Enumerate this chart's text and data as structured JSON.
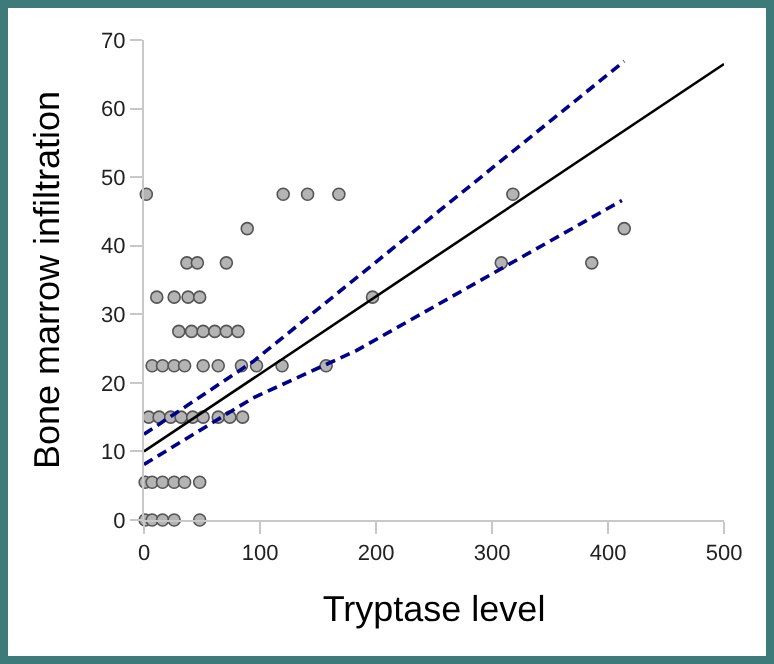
{
  "chart_data": {
    "type": "scatter",
    "xlabel": "Tryptase level",
    "ylabel": "Bone marrow infiltration",
    "xlim": [
      0,
      500
    ],
    "xticks": [
      0,
      100,
      200,
      300,
      400,
      500
    ],
    "ylim": [
      0,
      70
    ],
    "yticks": [
      0,
      10,
      20,
      30,
      40,
      50,
      60,
      70
    ],
    "series": [
      {
        "marker": "circle",
        "color": "#b4b4b4",
        "x": [
          2,
          120,
          141,
          168,
          318,
          89,
          414,
          37,
          46,
          71,
          308,
          386,
          11,
          26,
          38,
          48,
          197,
          30,
          41,
          51,
          61,
          71,
          81,
          7,
          16,
          26,
          35,
          51,
          64,
          84,
          97,
          119,
          157,
          4,
          13,
          23,
          32,
          42,
          51,
          64,
          74,
          85,
          1,
          7,
          16,
          26,
          35,
          48,
          1,
          7,
          16,
          26,
          48
        ],
        "values": [
          47.5,
          47.5,
          47.5,
          47.5,
          47.5,
          42.5,
          42.5,
          37.5,
          37.5,
          37.5,
          37.5,
          37.5,
          32.5,
          32.5,
          32.5,
          32.5,
          32.5,
          27.5,
          27.5,
          27.5,
          27.5,
          27.5,
          27.5,
          22.5,
          22.5,
          22.5,
          22.5,
          22.5,
          22.5,
          22.5,
          22.5,
          22.5,
          22.5,
          15,
          15,
          15,
          15,
          15,
          15,
          15,
          15,
          15,
          5.5,
          5.5,
          5.5,
          5.5,
          5.5,
          5.5,
          0,
          0,
          0,
          0,
          0
        ]
      },
      {
        "type": "line",
        "line_style": "solid",
        "color": "#000000",
        "x": [
          0,
          500
        ],
        "values": [
          10,
          66.5
        ]
      },
      {
        "type": "line",
        "line_style": "dashed",
        "color": "#00008b",
        "x": [
          0,
          94,
          183,
          414
        ],
        "values": [
          12.5,
          23.1,
          35.3,
          66.9
        ]
      },
      {
        "type": "line",
        "line_style": "dashed",
        "color": "#00008b",
        "x": [
          0,
          94,
          183,
          412
        ],
        "values": [
          8.1,
          17.8,
          24.7,
          46.6
        ]
      }
    ]
  }
}
